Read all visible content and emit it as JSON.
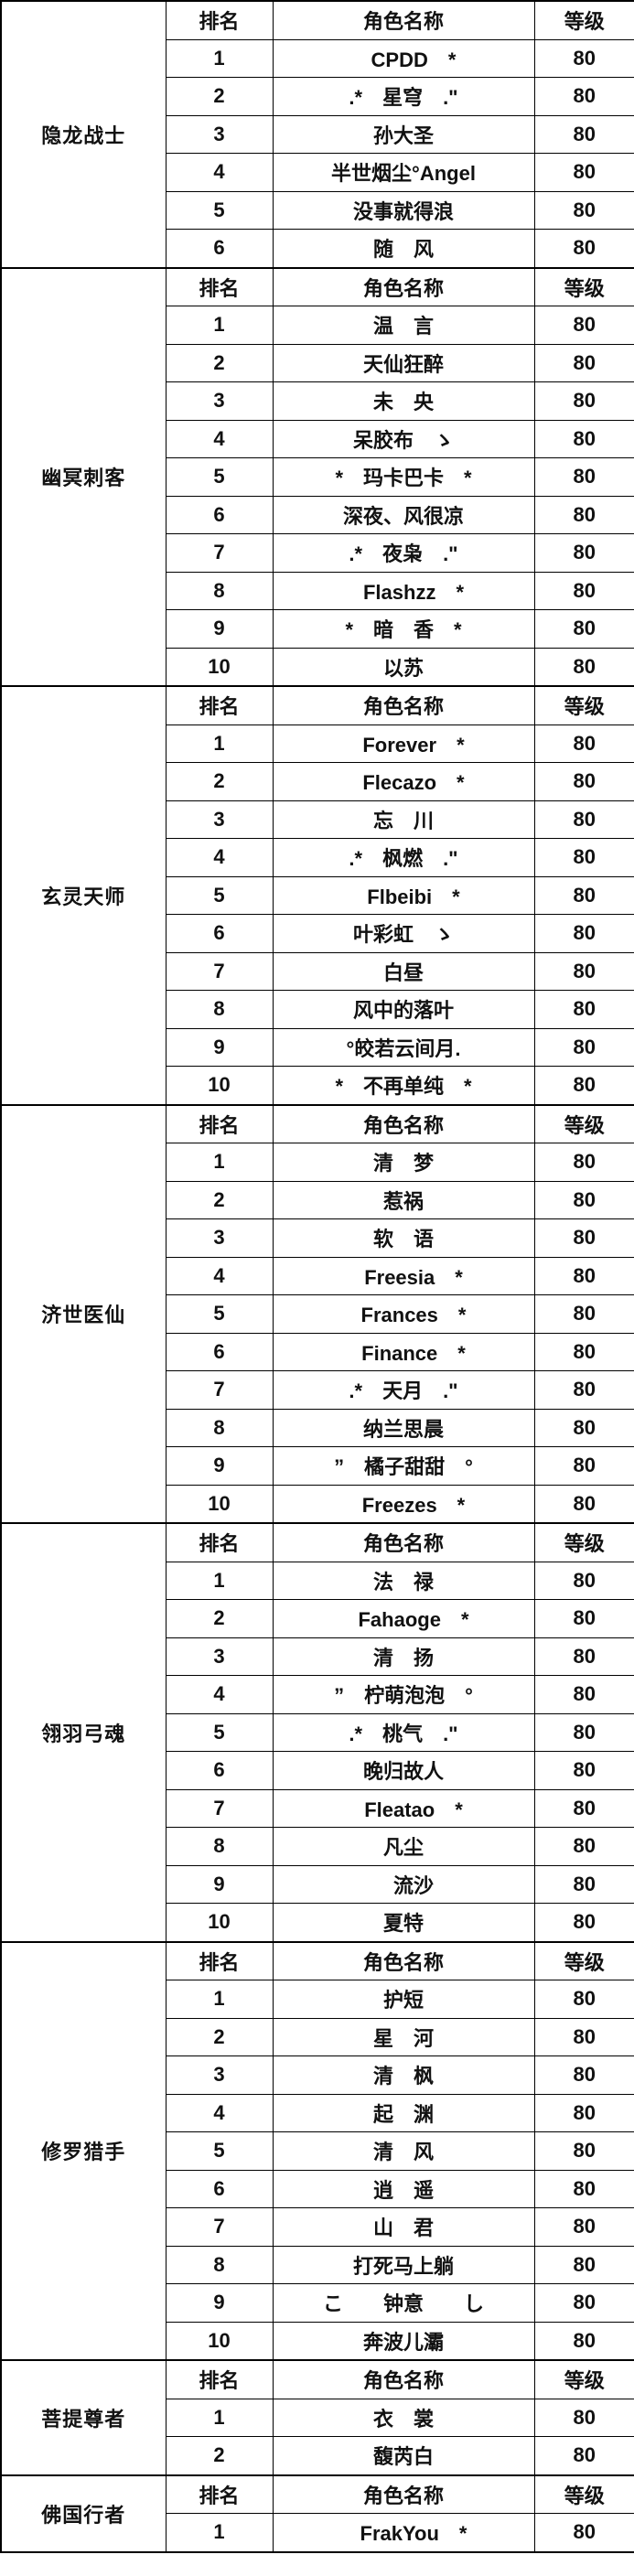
{
  "table": {
    "header_color": "#ff0000",
    "columns": {
      "rank": "排名",
      "name": "角色名称",
      "level": "等级"
    },
    "sections": [
      {
        "class": "隐龙战士",
        "rows": [
          {
            "rank": "1",
            "name": "　CPDD　*",
            "level": "80"
          },
          {
            "rank": "2",
            "name": ".*　星穹　.\"",
            "level": "80"
          },
          {
            "rank": "3",
            "name": "孙大圣",
            "level": "80"
          },
          {
            "rank": "4",
            "name": "半世烟尘°Angel",
            "level": "80"
          },
          {
            "rank": "5",
            "name": "没事就得浪",
            "level": "80"
          },
          {
            "rank": "6",
            "name": "随　风",
            "level": "80"
          }
        ]
      },
      {
        "class": "幽冥刺客",
        "rows": [
          {
            "rank": "1",
            "name": "温　言",
            "level": "80"
          },
          {
            "rank": "2",
            "name": "天仙狂醉",
            "level": "80"
          },
          {
            "rank": "3",
            "name": "未　央",
            "level": "80"
          },
          {
            "rank": "4",
            "name": "呆胶布　ゝ",
            "level": "80"
          },
          {
            "rank": "5",
            "name": "*　玛卡巴卡　*",
            "level": "80"
          },
          {
            "rank": "6",
            "name": "深夜、风很凉",
            "level": "80"
          },
          {
            "rank": "7",
            "name": ".*　夜枭　.\"",
            "level": "80"
          },
          {
            "rank": "8",
            "name": "　Flashzz　*",
            "level": "80"
          },
          {
            "rank": "9",
            "name": "*　暗　香　*",
            "level": "80"
          },
          {
            "rank": "10",
            "name": "以苏",
            "level": "80"
          }
        ]
      },
      {
        "class": "玄灵天师",
        "rows": [
          {
            "rank": "1",
            "name": "　Forever　*",
            "level": "80"
          },
          {
            "rank": "2",
            "name": "　Flecazo　*",
            "level": "80"
          },
          {
            "rank": "3",
            "name": "忘　川",
            "level": "80"
          },
          {
            "rank": "4",
            "name": ".*　枫燃　.\"",
            "level": "80"
          },
          {
            "rank": "5",
            "name": "　Flbeibi　*",
            "level": "80"
          },
          {
            "rank": "6",
            "name": "叶彩虹　ゝ",
            "level": "80"
          },
          {
            "rank": "7",
            "name": "白昼",
            "level": "80"
          },
          {
            "rank": "8",
            "name": "风中的落叶",
            "level": "80"
          },
          {
            "rank": "9",
            "name": "°皎若云间月.",
            "level": "80"
          },
          {
            "rank": "10",
            "name": "*　不再单纯　*",
            "level": "80"
          }
        ]
      },
      {
        "class": "济世医仙",
        "rows": [
          {
            "rank": "1",
            "name": "清　梦",
            "level": "80"
          },
          {
            "rank": "2",
            "name": "惹祸",
            "level": "80"
          },
          {
            "rank": "3",
            "name": "软　语",
            "level": "80"
          },
          {
            "rank": "4",
            "name": "　Freesia　*",
            "level": "80"
          },
          {
            "rank": "5",
            "name": "　Frances　*",
            "level": "80"
          },
          {
            "rank": "6",
            "name": "　Finance　*",
            "level": "80"
          },
          {
            "rank": "7",
            "name": ".*　天月　.\"",
            "level": "80"
          },
          {
            "rank": "8",
            "name": "纳兰思晨",
            "level": "80"
          },
          {
            "rank": "9",
            "name": "”　橘子甜甜　°",
            "level": "80"
          },
          {
            "rank": "10",
            "name": "　Freezes　*",
            "level": "80"
          }
        ]
      },
      {
        "class": "翎羽弓魂",
        "rows": [
          {
            "rank": "1",
            "name": "法　禄",
            "level": "80"
          },
          {
            "rank": "2",
            "name": "　Fahaoge　*",
            "level": "80"
          },
          {
            "rank": "3",
            "name": "清　扬",
            "level": "80"
          },
          {
            "rank": "4",
            "name": "”　柠萌泡泡　°",
            "level": "80"
          },
          {
            "rank": "5",
            "name": ".*　桃气　.\"",
            "level": "80"
          },
          {
            "rank": "6",
            "name": "晚归故人",
            "level": "80"
          },
          {
            "rank": "7",
            "name": "　Fleatao　*",
            "level": "80"
          },
          {
            "rank": "8",
            "name": "凡尘",
            "level": "80"
          },
          {
            "rank": "9",
            "name": "　流沙",
            "level": "80"
          },
          {
            "rank": "10",
            "name": "夏特",
            "level": "80"
          }
        ]
      },
      {
        "class": "修罗猎手",
        "rows": [
          {
            "rank": "1",
            "name": "护短",
            "level": "80"
          },
          {
            "rank": "2",
            "name": "星　河",
            "level": "80"
          },
          {
            "rank": "3",
            "name": "清　枫",
            "level": "80"
          },
          {
            "rank": "4",
            "name": "起　渊",
            "level": "80"
          },
          {
            "rank": "5",
            "name": "清　风",
            "level": "80"
          },
          {
            "rank": "6",
            "name": "逍　遥",
            "level": "80"
          },
          {
            "rank": "7",
            "name": "山　君",
            "level": "80"
          },
          {
            "rank": "8",
            "name": "打死马上躺",
            "level": "80"
          },
          {
            "rank": "9",
            "name": "こ　　钟意　　し",
            "level": "80"
          },
          {
            "rank": "10",
            "name": "奔波儿灞",
            "level": "80"
          }
        ]
      },
      {
        "class": "菩提尊者",
        "rows": [
          {
            "rank": "1",
            "name": "衣　裳",
            "level": "80"
          },
          {
            "rank": "2",
            "name": "馥芮白",
            "level": "80"
          }
        ]
      },
      {
        "class": "佛国行者",
        "rows": [
          {
            "rank": "1",
            "name": "　FrakYou　*",
            "level": "80"
          }
        ]
      }
    ]
  }
}
